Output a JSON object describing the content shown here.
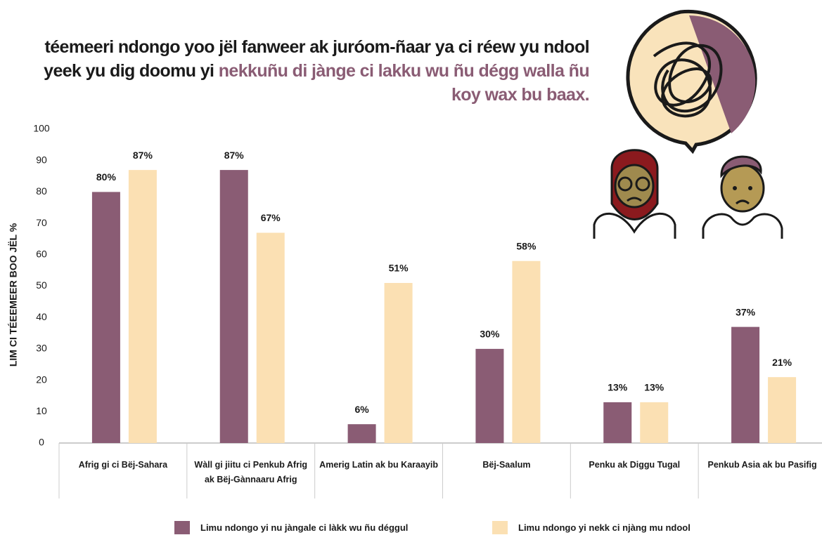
{
  "chart_data": {
    "type": "bar",
    "title": "téemeeri ndongo yoo jël fanweer ak juróom-ñaar ya ci réew yu ndool yeek yu dig doomu yi",
    "title_highlight": "nekkuñu di jànge ci lakku wu ñu dégg walla ñu koy wax bu baax.",
    "title_highlight_color": "#8a5c74",
    "y_label": "LIM CI TÉEEMEER BOO JËL %",
    "categories": [
      "Afrig gi ci Bëj-Sahara",
      "Wàll gi jiitu ci Penkub Afrig ak Bëj-Gànnaaru Afrig",
      "Amerig Latin ak bu Karaayib",
      "Bëj-Saalum",
      "Penku ak Diggu Tugal",
      "Penkub Asia ak bu Pasifig"
    ],
    "series": [
      {
        "name": "Limu ndongo yi nu jàngale ci làkk wu ñu déggul",
        "color": "#8a5c74",
        "values": [
          80,
          87,
          6,
          30,
          13,
          37
        ],
        "value_labels": [
          "80%",
          "87%",
          "6%",
          "30%",
          "13%",
          "37%"
        ]
      },
      {
        "name": "Limu ndongo yi nekk ci njàng mu ndool",
        "color": "#fbe0b3",
        "values": [
          87,
          67,
          51,
          58,
          13,
          21
        ],
        "value_labels": [
          "87%",
          "67%",
          "51%",
          "58%",
          "13%",
          "21%"
        ]
      }
    ],
    "ylim": [
      0,
      100
    ],
    "yticks": [
      0,
      10,
      20,
      30,
      40,
      50,
      60,
      70,
      80,
      90,
      100
    ],
    "grid": false
  }
}
